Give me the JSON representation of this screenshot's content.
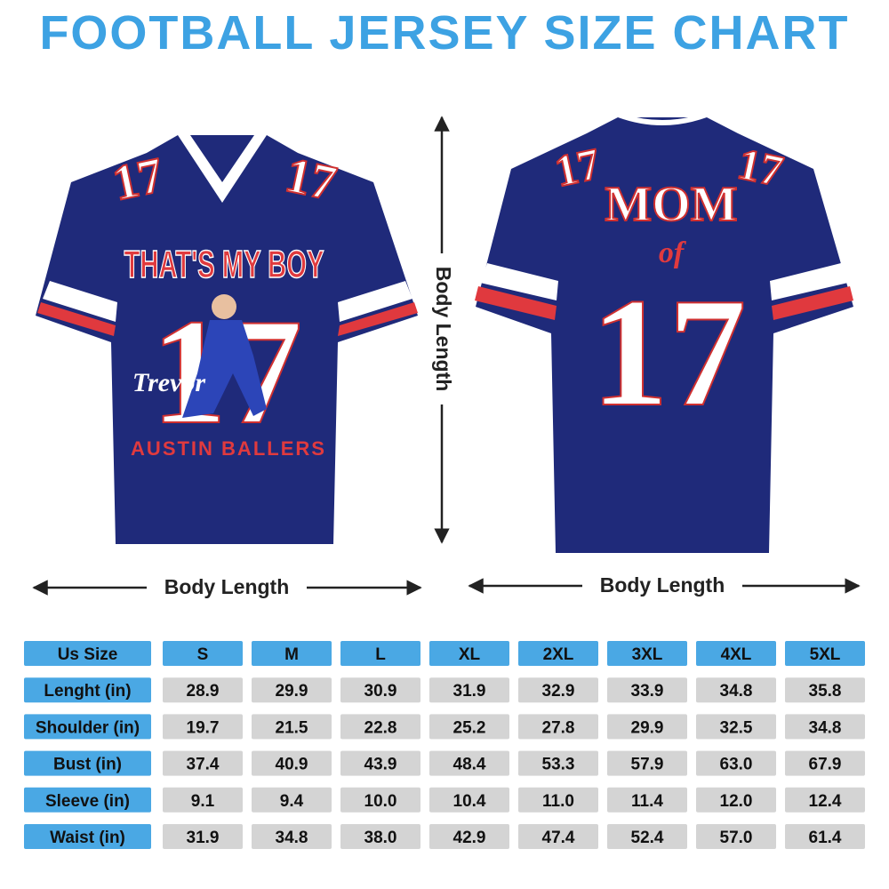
{
  "header": {
    "title": "FOOTBALL JERSEY SIZE CHART"
  },
  "front": {
    "sleeve_number": "17",
    "slogan": "THAT'S MY BOY",
    "number": "17",
    "name": "Trevor",
    "team": "AUSTIN BALLERS"
  },
  "back": {
    "sleeve_number": "17",
    "title": "MOM",
    "of": "of",
    "number": "17"
  },
  "measurements": {
    "vertical": "Body Length",
    "front_horizontal": "Body Length",
    "back_horizontal": "Body Length"
  },
  "table": {
    "header": [
      "Us Size",
      "S",
      "M",
      "L",
      "XL",
      "2XL",
      "3XL",
      "4XL",
      "5XL"
    ],
    "rows": [
      [
        "Lenght (in)",
        "28.9",
        "29.9",
        "30.9",
        "31.9",
        "32.9",
        "33.9",
        "34.8",
        "35.8"
      ],
      [
        "Shoulder (in)",
        "19.7",
        "21.5",
        "22.8",
        "25.2",
        "27.8",
        "29.9",
        "32.5",
        "34.8"
      ],
      [
        "Bust (in)",
        "37.4",
        "40.9",
        "43.9",
        "48.4",
        "53.3",
        "57.9",
        "63.0",
        "67.9"
      ],
      [
        "Sleeve (in)",
        "9.1",
        "9.4",
        "10.0",
        "10.4",
        "11.0",
        "11.4",
        "12.0",
        "12.4"
      ],
      [
        "Waist (in)",
        "31.9",
        "34.8",
        "38.0",
        "42.9",
        "47.4",
        "52.4",
        "57.0",
        "61.4"
      ]
    ]
  }
}
